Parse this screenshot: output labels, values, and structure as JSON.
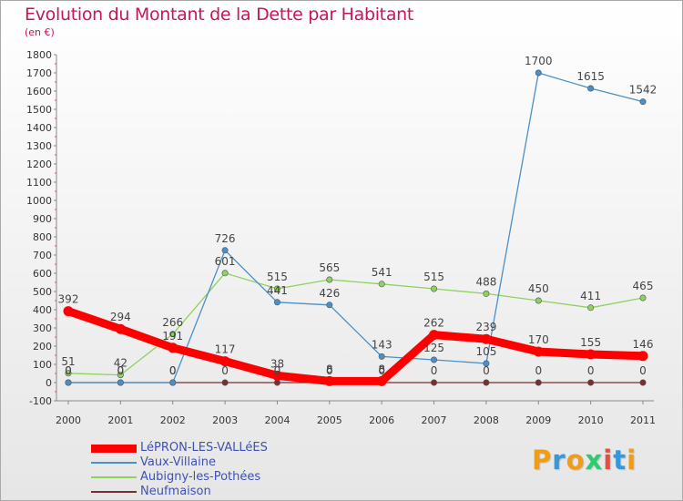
{
  "header": {
    "title": "Evolution du Montant de la Dette par Habitant",
    "subtitle": "(en €)"
  },
  "chart_data": {
    "type": "line",
    "title": "Evolution du Montant de la Dette par Habitant",
    "subtitle": "(en €)",
    "x": [
      "2000",
      "2001",
      "2002",
      "2003",
      "2004",
      "2005",
      "2006",
      "2007",
      "2008",
      "2009",
      "2010",
      "2011"
    ],
    "ylim": [
      -100,
      1800
    ],
    "yticks": [
      -100,
      0,
      100,
      200,
      300,
      400,
      500,
      600,
      700,
      800,
      900,
      1000,
      1100,
      1200,
      1300,
      1400,
      1500,
      1600,
      1700,
      1800
    ],
    "grid": false,
    "legend": "bottom-left",
    "series": [
      {
        "name": "LéPRON-LES-VALLéES",
        "color": "#ff0000",
        "values": [
          392,
          294,
          191,
          117,
          38,
          8,
          8,
          262,
          239,
          170,
          155,
          146
        ]
      },
      {
        "name": "Vaux-Villaine",
        "color": "#4a90c8",
        "values": [
          0,
          0,
          0,
          726,
          441,
          426,
          143,
          125,
          105,
          1700,
          1615,
          1542
        ]
      },
      {
        "name": "Aubigny-les-Pothées",
        "color": "#8fd160",
        "values": [
          51,
          42,
          266,
          601,
          515,
          565,
          541,
          515,
          488,
          450,
          411,
          465
        ]
      },
      {
        "name": "Neufmaison",
        "color": "#7a2e2e",
        "values": [
          0,
          0,
          0,
          0,
          0,
          0,
          0,
          0,
          0,
          0,
          0,
          0
        ]
      }
    ]
  },
  "logo": {
    "letters": [
      "P",
      "r",
      "o",
      "x",
      "i",
      "t",
      "i"
    ],
    "colors": [
      "#f39c12",
      "#3498db",
      "#f39c12",
      "#2ecc71",
      "#e74c3c",
      "#3498db",
      "#f39c12"
    ]
  }
}
